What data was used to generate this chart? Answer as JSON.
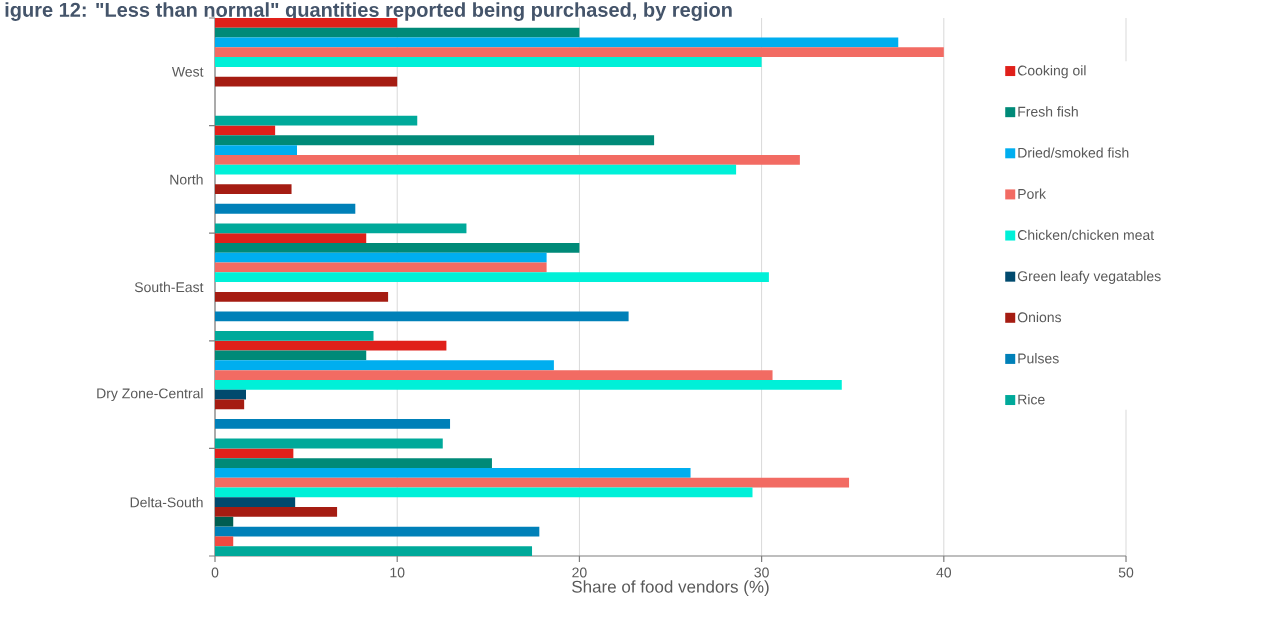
{
  "chart_data": {
    "type": "bar",
    "orientation": "horizontal",
    "title": "igure 12: \"Less than normal\" quantities reported being purchased, by region",
    "xlabel": "Share of food vendors (%)",
    "categories": [
      "West",
      "North",
      "South-East",
      "Dry Zone-Central",
      "Delta-South"
    ],
    "series": [
      {
        "name": "Cooking oil",
        "color": "#e0201a",
        "values": [
          10.0,
          3.3,
          8.3,
          12.7,
          4.3
        ]
      },
      {
        "name": "Fresh fish",
        "color": "#008a78",
        "values": [
          20.0,
          24.1,
          20.0,
          8.3,
          15.2
        ]
      },
      {
        "name": "Dried/smoked fish",
        "color": "#00aeef",
        "values": [
          37.5,
          4.5,
          18.2,
          18.6,
          26.1
        ]
      },
      {
        "name": "Pork",
        "color": "#f26b63",
        "values": [
          40.0,
          32.1,
          18.2,
          30.6,
          34.8
        ]
      },
      {
        "name": "Chicken/chicken meat",
        "color": "#00f0d8",
        "values": [
          30.0,
          28.6,
          30.4,
          34.4,
          29.5
        ]
      },
      {
        "name": "Green leafy vegatables",
        "color": "#004a6e",
        "values": [
          null,
          null,
          null,
          1.7,
          4.4
        ]
      },
      {
        "name": "Onions",
        "color": "#a51c12",
        "values": [
          10.0,
          4.2,
          9.5,
          1.6,
          6.7
        ]
      },
      {
        "color": "#005e50",
        "values": [
          null,
          null,
          null,
          null,
          1.0
        ]
      },
      {
        "name": "Pulses",
        "color": "#0080b8",
        "values": [
          null,
          7.7,
          22.7,
          12.9,
          17.8
        ]
      },
      {
        "color": "#f04a40",
        "values": [
          null,
          null,
          null,
          null,
          1.0
        ]
      },
      {
        "name": "Rice",
        "color": "#00a99a",
        "values": [
          11.1,
          13.8,
          8.7,
          12.5,
          17.4
        ]
      }
    ],
    "xlim": [
      0,
      50
    ],
    "xticks": [
      0,
      10,
      20,
      30,
      40,
      50
    ],
    "grid": "x",
    "legend": "right"
  }
}
